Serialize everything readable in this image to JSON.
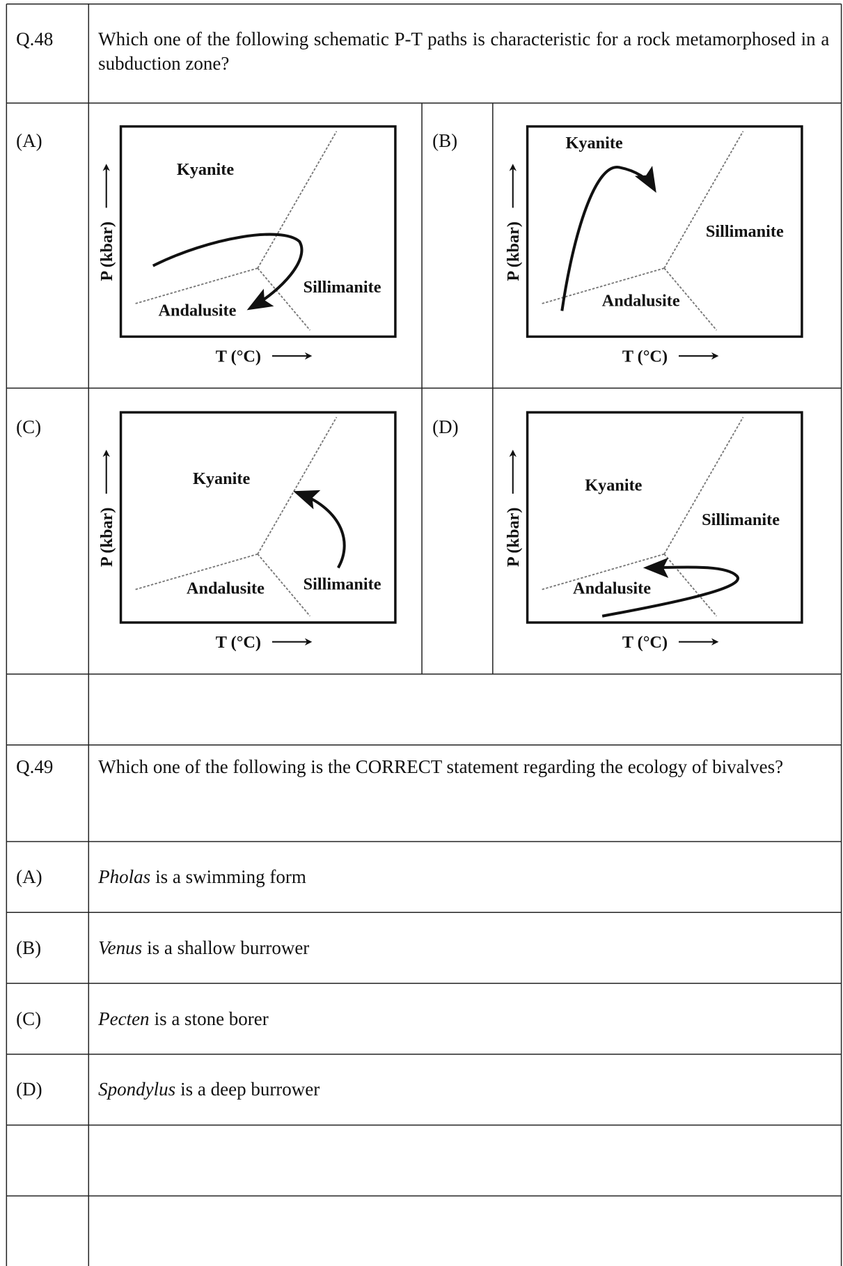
{
  "questions": [
    {
      "number": "Q.48",
      "text": "Which one of the following schematic P-T paths is characteristic for a rock metamorphosed in a subduction zone?",
      "options": [
        {
          "label": "(A)",
          "diagram": {
            "kyanite": "Kyanite",
            "sillimanite": "Sillimanite",
            "andalusite": "Andalusite",
            "y_axis": "P (kbar)",
            "x_axis": "T (°C)"
          }
        },
        {
          "label": "(B)",
          "diagram": {
            "kyanite": "Kyanite",
            "sillimanite": "Sillimanite",
            "andalusite": "Andalusite",
            "y_axis": "P (kbar)",
            "x_axis": "T (°C)"
          }
        },
        {
          "label": "(C)",
          "diagram": {
            "kyanite": "Kyanite",
            "sillimanite": "Sillimanite",
            "andalusite": "Andalusite",
            "y_axis": "P (kbar)",
            "x_axis": "T (°C)"
          }
        },
        {
          "label": "(D)",
          "diagram": {
            "kyanite": "Kyanite",
            "sillimanite": "Sillimanite",
            "andalusite": "Andalusite",
            "y_axis": "P (kbar)",
            "x_axis": "T (°C)"
          }
        }
      ]
    },
    {
      "number": "Q.49",
      "text": "Which one of the following is the CORRECT statement regarding the ecology of bivalves?",
      "options": [
        {
          "label": "(A)",
          "genus": "Pholas",
          "text": "is a swimming form"
        },
        {
          "label": "(B)",
          "genus": "Venus",
          "text": "is a shallow burrower"
        },
        {
          "label": "(C)",
          "genus": "Pecten",
          "text": "is a stone borer"
        },
        {
          "label": "(D)",
          "genus": "Spondylus",
          "text": "is a deep burrower"
        }
      ]
    }
  ]
}
